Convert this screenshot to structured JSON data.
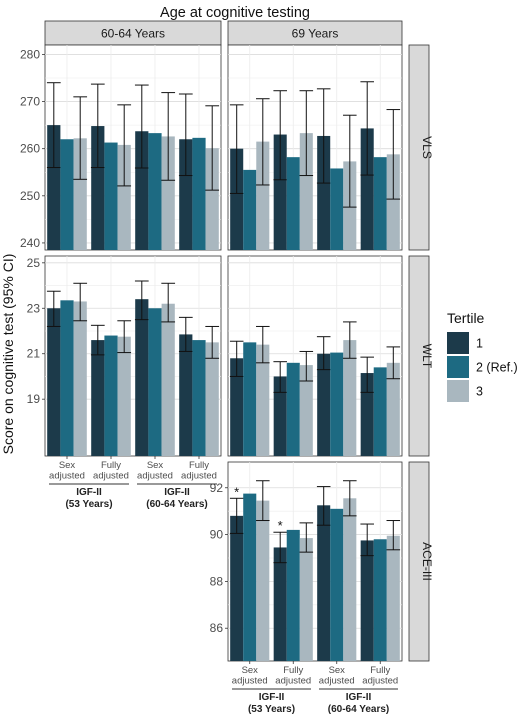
{
  "title": "Age at cognitive testing",
  "ylabel": "Score on cognitive test (95% CI)",
  "legend": {
    "title": "Tertile",
    "items": [
      {
        "label": "1",
        "color": "#1c3a4a"
      },
      {
        "label": "2 (Ref.)",
        "color": "#1d6a82"
      },
      {
        "label": "3",
        "color": "#a9b7bf"
      }
    ]
  },
  "chart_data": {
    "type": "bar",
    "column_strips": [
      "60-64 Years",
      "69 Years"
    ],
    "row_strips": [
      "VLS",
      "WLT",
      "ACE-III"
    ],
    "categories": [
      "Sex adjusted",
      "Fully adjusted",
      "Sex adjusted",
      "Fully adjusted"
    ],
    "category_lines": [
      [
        "Sex",
        "adjusted"
      ],
      [
        "Fully",
        "adjusted"
      ],
      [
        "Sex",
        "adjusted"
      ],
      [
        "Fully",
        "adjusted"
      ]
    ],
    "groups": [
      {
        "lines": [
          "IGF-II",
          "(53 Years)"
        ]
      },
      {
        "lines": [
          "IGF-II",
          "(60-64 Years)"
        ]
      }
    ],
    "series_names": [
      "1",
      "2 (Ref.)",
      "3"
    ],
    "rows": [
      {
        "name": "VLS",
        "ylim": [
          238.5,
          282
        ],
        "yticks": [
          240,
          250,
          260,
          270,
          280
        ],
        "panels": [
          {
            "values": [
              [
                265.0,
                262.0,
                262.2
              ],
              [
                264.8,
                261.3,
                260.8
              ],
              [
                263.7,
                263.3,
                262.6
              ],
              [
                262.0,
                262.3,
                260.1
              ]
            ],
            "ci": [
              [
                [
                  256,
                  274
                ],
                [
                  null,
                  null
                ],
                [
                  253.5,
                  271
                ]
              ],
              [
                [
                  256,
                  273.7
                ],
                [
                  null,
                  null
                ],
                [
                  252.1,
                  269.3
                ]
              ],
              [
                [
                  255.9,
                  273.5
                ],
                [
                  null,
                  null
                ],
                [
                  253.3,
                  271.9
                ]
              ],
              [
                [
                  254.3,
                  271.6
                ],
                [
                  null,
                  null
                ],
                [
                  251.2,
                  269.1
                ]
              ]
            ]
          },
          {
            "values": [
              [
                260.0,
                255.5,
                261.5
              ],
              [
                263.0,
                258.2,
                263.3
              ],
              [
                262.7,
                255.8,
                257.3
              ],
              [
                264.3,
                258.2,
                258.8
              ]
            ],
            "ci": [
              [
                [
                  250.5,
                  269.3
                ],
                [
                  null,
                  null
                ],
                [
                  252.3,
                  270.6
                ]
              ],
              [
                [
                  253.4,
                  272.3
                ],
                [
                  null,
                  null
                ],
                [
                  254.3,
                  272.3
                ]
              ],
              [
                [
                  252.7,
                  272.7
                ],
                [
                  null,
                  null
                ],
                [
                  247.6,
                  267.1
                ]
              ],
              [
                [
                  254.4,
                  274.2
                ],
                [
                  null,
                  null
                ],
                [
                  249.3,
                  268.3
                ]
              ]
            ]
          }
        ]
      },
      {
        "name": "WLT",
        "ylim": [
          16.5,
          25.3
        ],
        "yticks": [
          19,
          21,
          23,
          25
        ],
        "panels": [
          {
            "values": [
              [
                23.0,
                23.35,
                23.3
              ],
              [
                21.6,
                21.8,
                21.75
              ],
              [
                23.4,
                23.0,
                23.2
              ],
              [
                21.85,
                21.6,
                21.5
              ]
            ],
            "ci": [
              [
                [
                  22.2,
                  23.75
                ],
                [
                  null,
                  null
                ],
                [
                  22.45,
                  24.1
                ]
              ],
              [
                [
                  20.95,
                  22.25
                ],
                [
                  null,
                  null
                ],
                [
                  21.05,
                  22.45
                ]
              ],
              [
                [
                  22.5,
                  24.2
                ],
                [
                  null,
                  null
                ],
                [
                  22.4,
                  24.1
                ]
              ],
              [
                [
                  21.1,
                  22.6
                ],
                [
                  null,
                  null
                ],
                [
                  20.8,
                  22.2
                ]
              ]
            ]
          },
          {
            "values": [
              [
                20.8,
                21.5,
                21.4
              ],
              [
                20.0,
                20.6,
                20.5
              ],
              [
                21.0,
                21.05,
                21.6
              ],
              [
                20.15,
                20.4,
                20.6
              ]
            ],
            "ci": [
              [
                [
                  20.0,
                  21.55
                ],
                [
                  null,
                  null
                ],
                [
                  20.6,
                  22.2
                ]
              ],
              [
                [
                  19.3,
                  20.65
                ],
                [
                  null,
                  null
                ],
                [
                  19.8,
                  21.1
                ]
              ],
              [
                [
                  20.3,
                  21.75
                ],
                [
                  null,
                  null
                ],
                [
                  20.8,
                  22.4
                ]
              ],
              [
                [
                  19.3,
                  20.85
                ],
                [
                  null,
                  null
                ],
                [
                  19.9,
                  21.3
                ]
              ]
            ]
          }
        ]
      },
      {
        "name": "ACE-III",
        "ylim": [
          84.6,
          93.1
        ],
        "yticks": [
          86,
          88,
          90,
          92
        ],
        "panels": [
          null,
          {
            "values": [
              [
                90.8,
                91.75,
                91.45
              ],
              [
                89.45,
                90.2,
                89.85
              ],
              [
                91.25,
                91.1,
                91.55
              ],
              [
                89.75,
                89.8,
                89.95
              ]
            ],
            "ci": [
              [
                [
                  90.05,
                  91.55
                ],
                [
                  null,
                  null
                ],
                [
                  90.6,
                  92.3
                ]
              ],
              [
                [
                  88.8,
                  90.1
                ],
                [
                  null,
                  null
                ],
                [
                  89.25,
                  90.5
                ]
              ],
              [
                [
                  90.4,
                  92.05
                ],
                [
                  null,
                  null
                ],
                [
                  90.8,
                  92.3
                ]
              ],
              [
                [
                  89.1,
                  90.45
                ],
                [
                  null,
                  null
                ],
                [
                  89.35,
                  90.6
                ]
              ]
            ],
            "stars": [
              [
                0,
                0
              ],
              [
                1,
                0
              ]
            ]
          }
        ]
      }
    ],
    "annotations": [
      "*",
      "*"
    ]
  }
}
